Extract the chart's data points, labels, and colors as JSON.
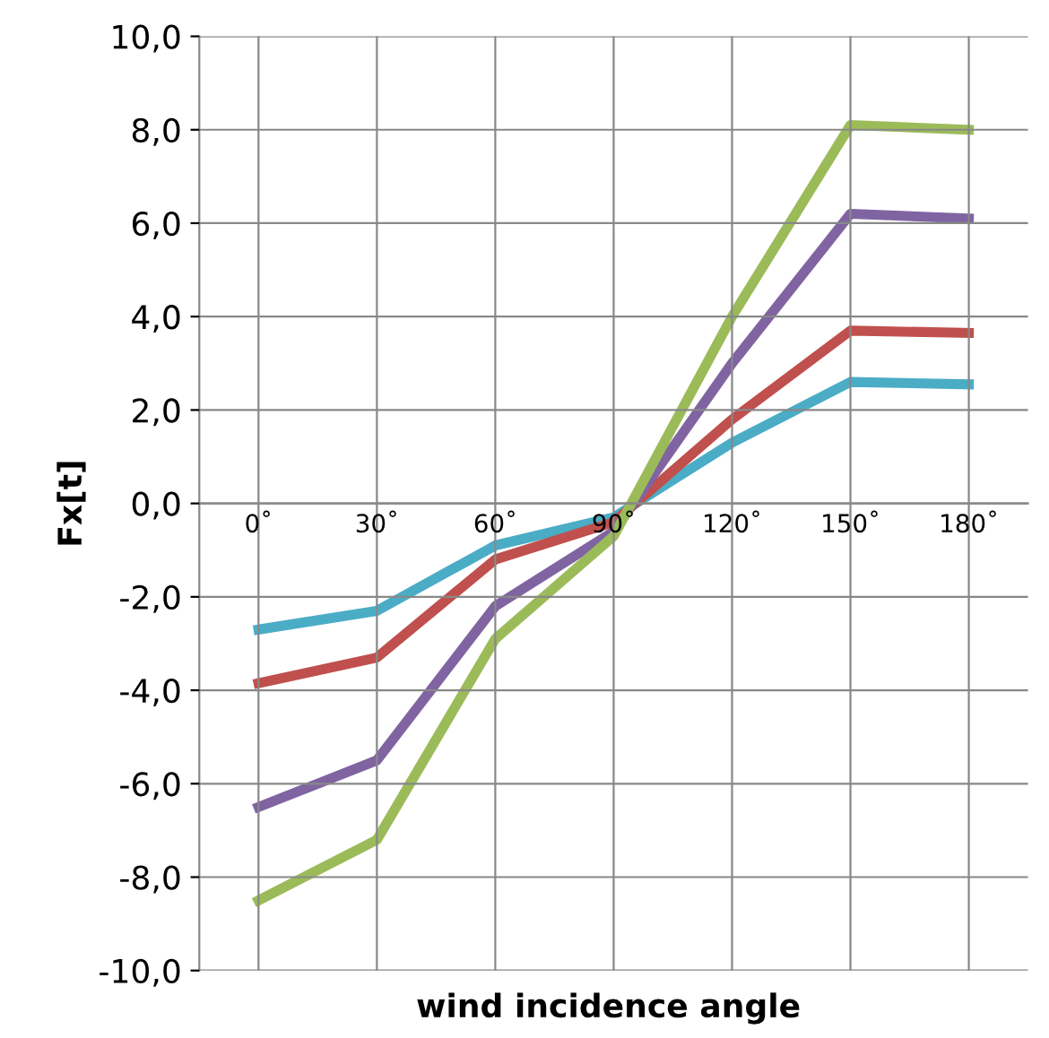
{
  "chart_data": {
    "type": "line",
    "xlabel": "wind incidence angle",
    "ylabel": "Fx[t]",
    "categories": [
      "0˚",
      "30˚",
      "60˚",
      "90˚",
      "120˚",
      "150˚",
      "180˚"
    ],
    "series": [
      {
        "color": "#4bacc6",
        "values": [
          -2.7,
          -2.3,
          -0.9,
          -0.3,
          1.3,
          2.6,
          2.55
        ]
      },
      {
        "color": "#c0504d",
        "values": [
          -3.85,
          -3.3,
          -1.2,
          -0.4,
          1.8,
          3.7,
          3.65
        ]
      },
      {
        "color": "#8064a2",
        "values": [
          -6.5,
          -5.5,
          -2.2,
          -0.6,
          3.0,
          6.2,
          6.1
        ]
      },
      {
        "color": "#9bbb59",
        "values": [
          -8.5,
          -7.2,
          -2.9,
          -0.7,
          4.0,
          8.1,
          8.0
        ]
      }
    ],
    "ylim": [
      -10,
      10
    ],
    "yticks": [
      {
        "value": -10,
        "label": "-10,0"
      },
      {
        "value": -8,
        "label": "-8,0"
      },
      {
        "value": -6,
        "label": "-6,0"
      },
      {
        "value": -4,
        "label": "-4,0"
      },
      {
        "value": -2,
        "label": "-2,0"
      },
      {
        "value": 0,
        "label": "0,0"
      },
      {
        "value": 2,
        "label": "2,0"
      },
      {
        "value": 4,
        "label": "4,0"
      },
      {
        "value": 6,
        "label": "6,0"
      },
      {
        "value": 8,
        "label": "8,0"
      },
      {
        "value": 10,
        "label": "10,0"
      }
    ],
    "grid": true,
    "marker": "none",
    "line_style": "solid"
  }
}
